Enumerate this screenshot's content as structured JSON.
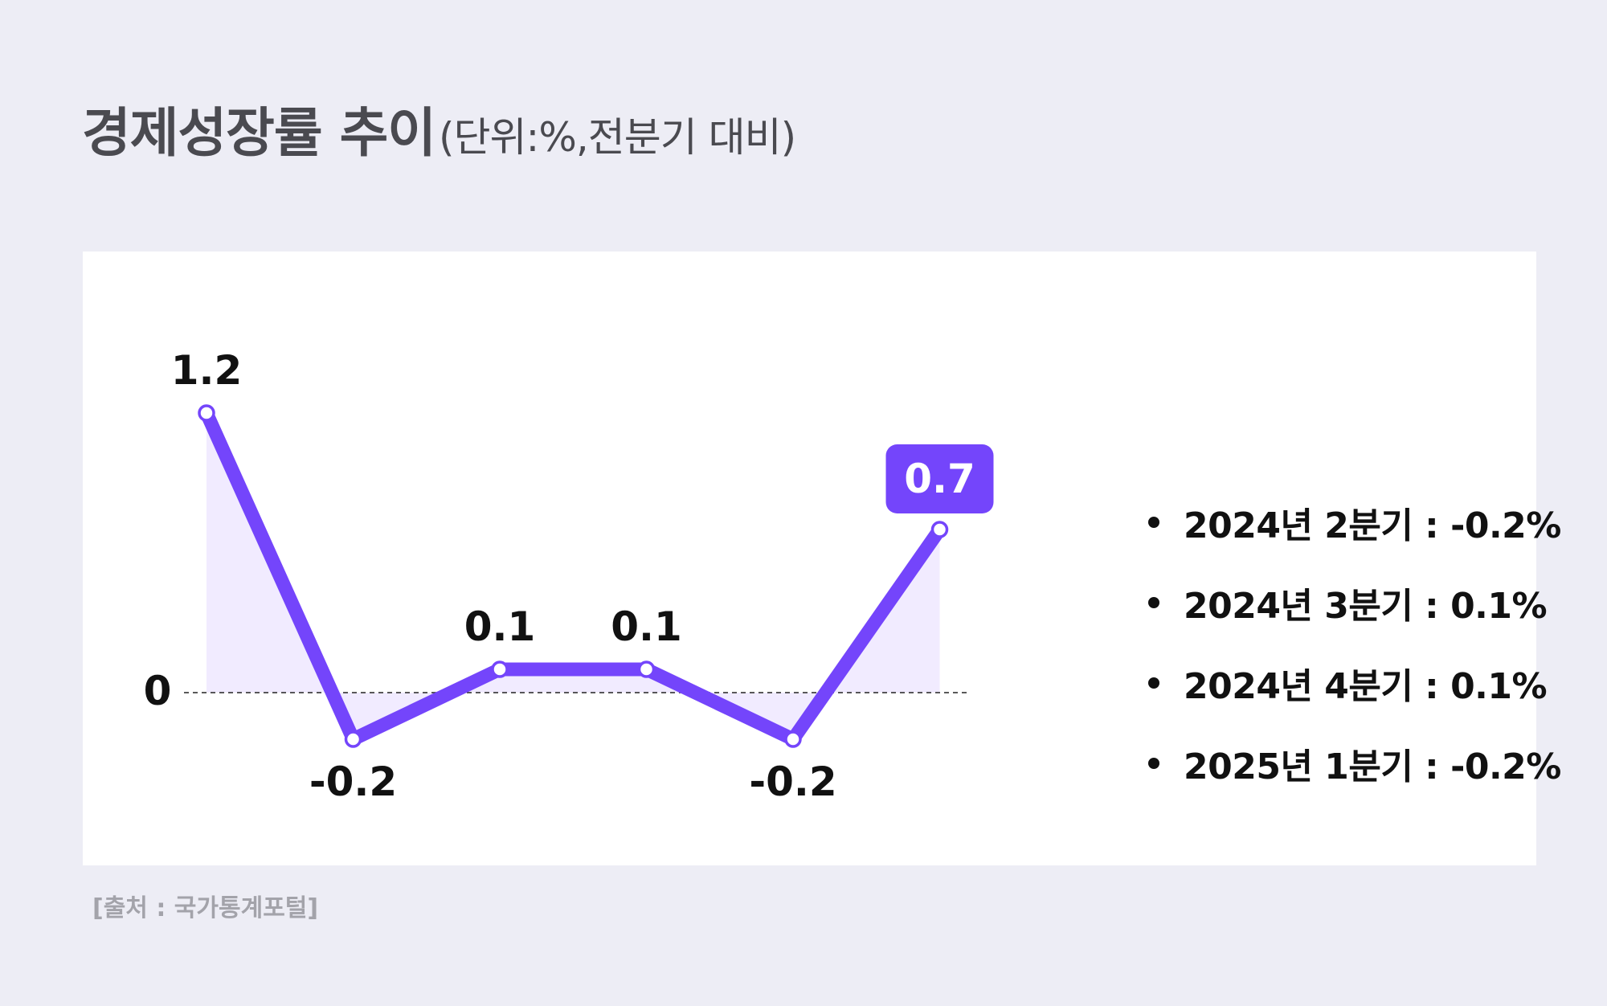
{
  "title": {
    "main": "경제성장률 추이",
    "unit": "(단위:%,전분기 대비)"
  },
  "source": "[출처 : 국가통계포털]",
  "colors": {
    "background": "#ededf5",
    "card": "#ffffff",
    "line": "#7445fb",
    "area_fill": "#ece4ff",
    "highlight_badge": "#7445fb",
    "text": "#111111",
    "title_text": "#4a4a50",
    "source_text": "#a3a3aa"
  },
  "chart_data": {
    "type": "line",
    "title": "경제성장률 추이",
    "unit": "(단위:%,전분기 대비)",
    "zero_label": "0",
    "values": [
      1.2,
      -0.2,
      0.1,
      0.1,
      -0.2,
      0.7
    ],
    "value_labels": [
      "1.2",
      "-0.2",
      "0.1",
      "0.1",
      "-0.2",
      "0.7"
    ],
    "highlight_index": 5,
    "xlabel": "",
    "ylabel": "",
    "grid": false,
    "baseline": 0,
    "baseline_style": "dashed",
    "area_fill": true
  },
  "legend": {
    "placement": "right",
    "items": [
      "2024년 2분기 : -0.2%",
      "2024년 3분기 : 0.1%",
      "2024년 4분기 : 0.1%",
      "2025년 1분기 : -0.2%"
    ]
  }
}
